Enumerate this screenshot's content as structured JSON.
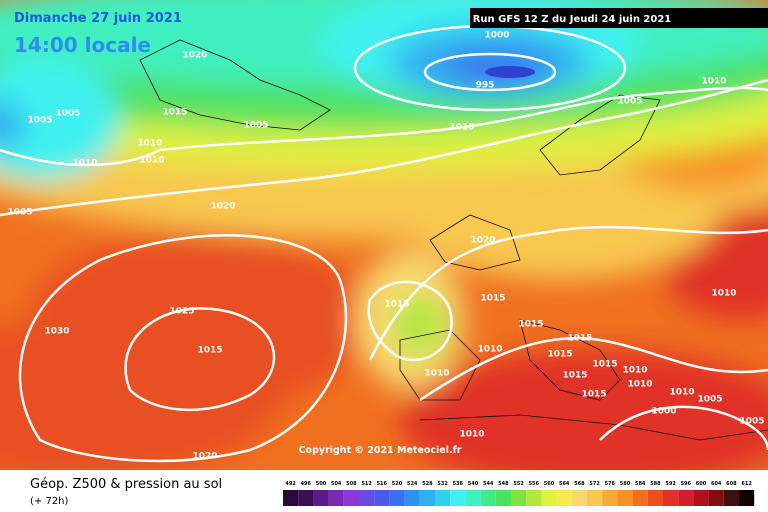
{
  "header": {
    "date": "Dimanche 27 juin 2021",
    "time": "14:00 locale",
    "run": "Run GFS 12 Z du Jeudi 24 juin 2021"
  },
  "map": {
    "isobar_labels": [
      1020,
      1015,
      1005,
      1005,
      1010,
      1010,
      1010,
      1005,
      1000,
      995,
      1010,
      1005,
      1010,
      1005,
      1020,
      1020,
      1015,
      1015,
      1025,
      1030,
      1015,
      1015,
      1010,
      1010,
      1015,
      1015,
      1015,
      1015,
      1010,
      1010,
      1015,
      1010,
      1005,
      1000,
      1005,
      1010,
      1020,
      1010
    ],
    "copyright": "Copyright © 2021 Meteociel.fr"
  },
  "legend": {
    "title": "Géop. Z500 & pression au sol",
    "lead_time": "(+ 72h)",
    "scale": [
      492,
      496,
      500,
      504,
      508,
      512,
      516,
      520,
      524,
      528,
      532,
      536,
      540,
      544,
      548,
      552,
      556,
      560,
      564,
      568,
      572,
      576,
      580,
      584,
      588,
      592,
      596,
      600,
      604,
      608,
      612
    ],
    "colors": [
      "#2a0a3a",
      "#3c0e5a",
      "#5a1a8a",
      "#7a2ab0",
      "#8a3ad0",
      "#6a4ae0",
      "#4a5ae8",
      "#3a70f0",
      "#3090f0",
      "#30b0f0",
      "#30d0f0",
      "#40f0f0",
      "#40f0c0",
      "#40e890",
      "#50e060",
      "#80e040",
      "#b0e840",
      "#e0f040",
      "#f8e850",
      "#f8d870",
      "#f8c850",
      "#f8a838",
      "#f89028",
      "#f07020",
      "#e85020",
      "#e03028",
      "#d02030",
      "#b01020",
      "#801010",
      "#401010",
      "#100000"
    ]
  }
}
